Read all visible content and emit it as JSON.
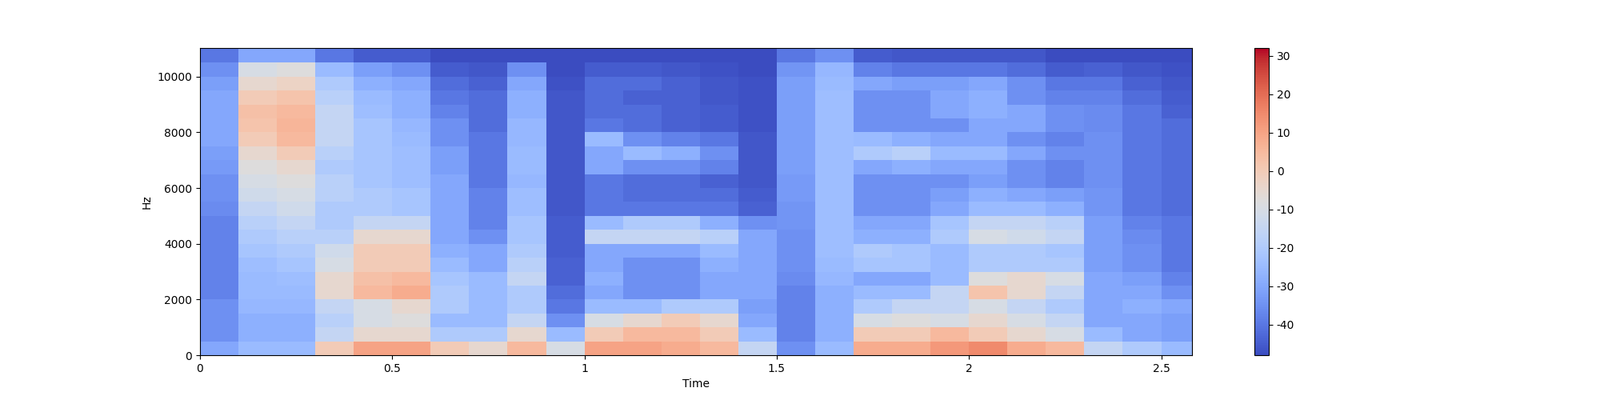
{
  "chart_data": {
    "type": "heatmap",
    "x_label": "Time",
    "y_label": "Hz",
    "xlim": [
      0,
      2.58
    ],
    "ylim": [
      0,
      11025
    ],
    "xticks": [
      0,
      0.5,
      1,
      1.5,
      2,
      2.5
    ],
    "yticks": [
      0,
      2000,
      4000,
      6000,
      8000,
      10000
    ],
    "x_edges": [
      0,
      0.1,
      0.2,
      0.3,
      0.4,
      0.5,
      0.6,
      0.7,
      0.8,
      0.9,
      1.0,
      1.1,
      1.2,
      1.3,
      1.4,
      1.5,
      1.6,
      1.7,
      1.8,
      1.9,
      2.0,
      2.1,
      2.2,
      2.3,
      2.4,
      2.5,
      2.58
    ],
    "y_edges": [
      0,
      500,
      1000,
      1500,
      2000,
      2500,
      3000,
      3500,
      4000,
      4500,
      5000,
      5500,
      6000,
      6500,
      7000,
      7500,
      8000,
      8500,
      9000,
      9500,
      10000,
      10500,
      11025
    ],
    "color": "coolwarm",
    "color_range": [
      -48,
      32
    ],
    "color_ticks": [
      -40,
      -30,
      -20,
      -10,
      0,
      10,
      20,
      30
    ],
    "cells": [
      [
        -30,
        -35,
        -35,
        -35,
        -38,
        -38,
        -38,
        -38,
        -38,
        -38,
        -36,
        -35,
        -35,
        -33,
        -32,
        -30,
        -30,
        -30,
        -30,
        -32,
        -35,
        -40
      ],
      [
        -25,
        -28,
        -28,
        -26,
        -25,
        -25,
        -24,
        -22,
        -20,
        -18,
        -15,
        -12,
        -10,
        -8,
        -5,
        0,
        2,
        3,
        0,
        -5,
        -10,
        -30
      ],
      [
        -25,
        -28,
        -28,
        -26,
        -25,
        -24,
        -22,
        -20,
        -18,
        -15,
        -12,
        -10,
        -8,
        -5,
        0,
        5,
        6,
        5,
        2,
        -3,
        -8,
        -30
      ],
      [
        0,
        -15,
        -18,
        -15,
        -5,
        -5,
        -10,
        -12,
        -18,
        -20,
        -20,
        -18,
        -18,
        -20,
        -18,
        -15,
        -15,
        -15,
        -18,
        -20,
        -25,
        -40
      ],
      [
        10,
        -5,
        -10,
        -10,
        5,
        3,
        0,
        0,
        -5,
        -15,
        -20,
        -20,
        -22,
        -22,
        -22,
        -22,
        -22,
        -24,
        -25,
        -28,
        -32,
        -45
      ],
      [
        10,
        -5,
        -8,
        -5,
        8,
        5,
        0,
        0,
        -5,
        -15,
        -22,
        -22,
        -24,
        -24,
        -24,
        -25,
        -26,
        -28,
        -28,
        -30,
        -35,
        -45
      ],
      [
        0,
        -20,
        -25,
        -20,
        -20,
        -22,
        -25,
        -28,
        -30,
        -30,
        -30,
        -30,
        -30,
        -32,
        -32,
        -35,
        -35,
        -38,
        -40,
        -42,
        -45,
        -48
      ],
      [
        -5,
        -20,
        -25,
        -25,
        -25,
        -25,
        -30,
        -30,
        -35,
        -38,
        -38,
        -38,
        -40,
        -40,
        -40,
        -40,
        -42,
        -42,
        -42,
        -44,
        -46,
        -48
      ],
      [
        5,
        -5,
        -15,
        -20,
        -20,
        -15,
        -18,
        -20,
        -22,
        -22,
        -24,
        -24,
        -26,
        -25,
        -25,
        -26,
        -26,
        -28,
        -28,
        -30,
        -35,
        -48
      ],
      [
        -10,
        -25,
        -35,
        -40,
        -42,
        -44,
        -44,
        -45,
        -45,
        -45,
        -46,
        -46,
        -46,
        -46,
        -46,
        -46,
        -46,
        -46,
        -46,
        -47,
        -48,
        -48
      ],
      [
        10,
        0,
        -10,
        -25,
        -30,
        -28,
        -30,
        -30,
        -15,
        -25,
        -40,
        -40,
        -40,
        -30,
        -30,
        -25,
        -40,
        -42,
        -42,
        -42,
        -45,
        -48
      ],
      [
        10,
        5,
        -5,
        -25,
        -35,
        -35,
        -35,
        -30,
        -15,
        -20,
        -40,
        -42,
        -42,
        -35,
        -25,
        -35,
        -42,
        -42,
        -44,
        -42,
        -45,
        -48
      ],
      [
        8,
        5,
        0,
        -20,
        -35,
        -35,
        -35,
        -30,
        -15,
        -20,
        -40,
        -42,
        -42,
        -35,
        -28,
        -38,
        -44,
        -44,
        -44,
        -44,
        -46,
        -48
      ],
      [
        5,
        0,
        -5,
        -20,
        -30,
        -30,
        -28,
        -25,
        -18,
        -28,
        -40,
        -42,
        -44,
        -38,
        -35,
        -40,
        -45,
        -45,
        -46,
        -46,
        -47,
        -48
      ],
      [
        -15,
        -25,
        -30,
        -32,
        -30,
        -30,
        -30,
        -30,
        -30,
        -35,
        -44,
        -45,
        -46,
        -46,
        -46,
        -46,
        -47,
        -47,
        -47,
        -47,
        -48,
        -48
      ],
      [
        -35,
        -38,
        -38,
        -38,
        -38,
        -36,
        -35,
        -35,
        -35,
        -34,
        -34,
        -33,
        -33,
        -32,
        -32,
        -32,
        -32,
        -32,
        -32,
        -32,
        -34,
        -40
      ],
      [
        -25,
        -28,
        -28,
        -28,
        -28,
        -26,
        -25,
        -24,
        -24,
        -24,
        -24,
        -24,
        -24,
        -24,
        -24,
        -24,
        -24,
        -24,
        -24,
        -25,
        -26,
        -35
      ],
      [
        8,
        0,
        -10,
        -20,
        -25,
        -30,
        -22,
        -20,
        -28,
        -30,
        -35,
        -35,
        -35,
        -30,
        -20,
        -25,
        -35,
        -35,
        -35,
        -30,
        -38,
        -45
      ],
      [
        8,
        0,
        -8,
        -15,
        -25,
        -30,
        -22,
        -22,
        -28,
        -30,
        -35,
        -35,
        -35,
        -28,
        -18,
        -28,
        -35,
        -35,
        -35,
        -32,
        -40,
        -46
      ],
      [
        12,
        5,
        -10,
        -15,
        -15,
        -25,
        -25,
        -25,
        -20,
        -22,
        -30,
        -32,
        -35,
        -30,
        -25,
        -30,
        -35,
        -30,
        -30,
        -32,
        -40,
        -46
      ],
      [
        15,
        0,
        -5,
        -10,
        2,
        -8,
        -20,
        -20,
        -10,
        -15,
        -25,
        -28,
        -32,
        -30,
        -25,
        -30,
        -30,
        -28,
        -28,
        -30,
        -40,
        -46
      ],
      [
        8,
        -5,
        -10,
        -15,
        -5,
        -5,
        -20,
        -20,
        -12,
        -15,
        -25,
        -30,
        -35,
        -35,
        -30,
        -35,
        -30,
        -30,
        -35,
        -35,
        -42,
        -46
      ],
      [
        5,
        -10,
        -15,
        -20,
        -15,
        -10,
        -20,
        -22,
        -15,
        -18,
        -28,
        -32,
        -38,
        -38,
        -35,
        -38,
        -35,
        -35,
        -38,
        -40,
        -45,
        -48
      ],
      [
        -15,
        -25,
        -30,
        -30,
        -30,
        -30,
        -32,
        -32,
        -32,
        -32,
        -34,
        -34,
        -35,
        -35,
        -35,
        -35,
        -36,
        -36,
        -38,
        -40,
        -44,
        -48
      ],
      [
        -20,
        -30,
        -30,
        -28,
        -30,
        -32,
        -35,
        -35,
        -36,
        -38,
        -40,
        -40,
        -40,
        -40,
        -40,
        -40,
        -40,
        -40,
        -42,
        -44,
        -46,
        -48
      ],
      [
        -25,
        -32,
        -32,
        -30,
        -35,
        -38,
        -40,
        -40,
        -40,
        -40,
        -42,
        -42,
        -42,
        -42,
        -42,
        -42,
        -42,
        -44,
        -45,
        -46,
        -47,
        -48
      ]
    ]
  }
}
